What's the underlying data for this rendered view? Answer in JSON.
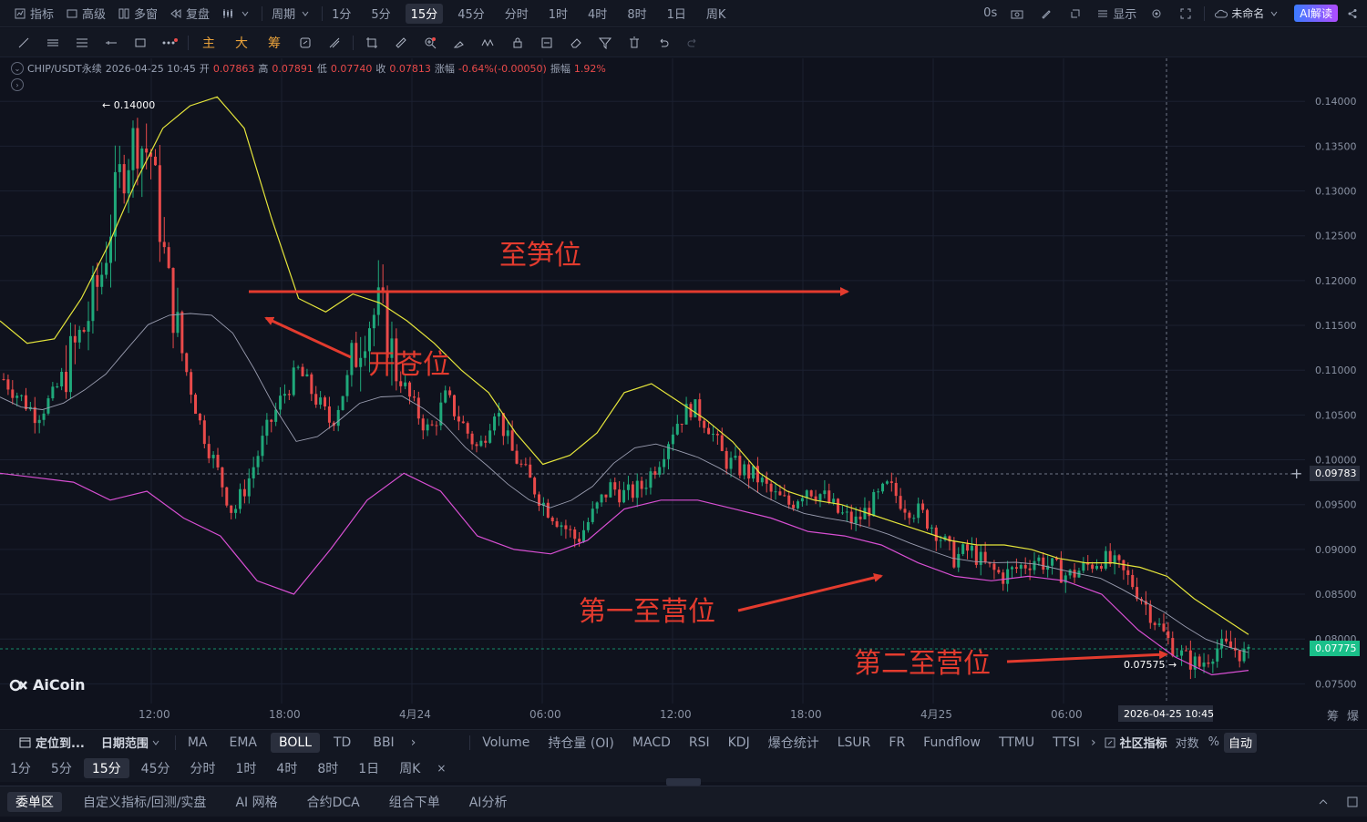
{
  "topbar": {
    "indicators": "指标",
    "advanced": "高级",
    "multi_window": "多窗",
    "replay": "复盘",
    "period_label": "周期",
    "timeframes": [
      "1分",
      "5分",
      "15分",
      "45分",
      "分时",
      "1时",
      "4时",
      "8时",
      "1日",
      "周K"
    ],
    "selected_timeframe": "15分",
    "countdown": "0s",
    "display": "显示",
    "layout_name": "未命名",
    "ai_button": "AI解读"
  },
  "toolbar": {
    "labels": [
      "主",
      "大",
      "筹"
    ]
  },
  "ohlc": {
    "symbol": "CHIP/USDT永续",
    "datetime": "2026-04-25 10:45",
    "open_label": "开",
    "open": "0.07863",
    "high_label": "高",
    "high": "0.07891",
    "low_label": "低",
    "low": "0.07740",
    "close_label": "收",
    "close": "0.07813",
    "change_label": "涨幅",
    "change": "-0.64%(-0.00050)",
    "amp_label": "振幅",
    "amp": "1.92%"
  },
  "chart_data": {
    "type": "candlestick",
    "indicator": "BOLL",
    "y_axis_ticks": [
      "0.14000",
      "0.13500",
      "0.13000",
      "0.12500",
      "0.12000",
      "0.11500",
      "0.11000",
      "0.10500",
      "0.10000",
      "0.09500",
      "0.09000",
      "0.08500",
      "0.08000",
      "0.07500"
    ],
    "ylim": [
      0.0728,
      0.1448
    ],
    "x_axis_ticks": [
      "12:00",
      "18:00",
      "4月24",
      "06:00",
      "12:00",
      "18:00",
      "4月25",
      "06:00"
    ],
    "crosshair_price": "0.09783",
    "last_price": "0.07775",
    "cursor_time": "2026-04-25 10:45",
    "max_marker": "0.14000",
    "min_marker": "0.07575",
    "close_path": [
      0.109,
      0.107,
      0.105,
      0.107,
      0.111,
      0.115,
      0.121,
      0.131,
      0.136,
      0.134,
      0.12,
      0.111,
      0.104,
      0.099,
      0.094,
      0.098,
      0.103,
      0.107,
      0.11,
      0.107,
      0.104,
      0.109,
      0.115,
      0.117,
      0.11,
      0.106,
      0.103,
      0.107,
      0.104,
      0.101,
      0.106,
      0.101,
      0.098,
      0.095,
      0.093,
      0.091,
      0.094,
      0.097,
      0.096,
      0.097,
      0.1,
      0.104,
      0.106,
      0.104,
      0.1,
      0.099,
      0.098,
      0.096,
      0.095,
      0.097,
      0.096,
      0.094,
      0.093,
      0.095,
      0.097,
      0.095,
      0.094,
      0.092,
      0.089,
      0.09,
      0.088,
      0.087,
      0.088,
      0.089,
      0.088,
      0.087,
      0.088,
      0.089,
      0.088,
      0.086,
      0.083,
      0.08,
      0.078,
      0.077,
      0.079,
      0.079,
      0.078
    ],
    "boll_upper": [
      0.1155,
      0.113,
      0.1135,
      0.118,
      0.124,
      0.131,
      0.137,
      0.1395,
      0.1405,
      0.137,
      0.127,
      0.118,
      0.1165,
      0.1185,
      0.1175,
      0.1155,
      0.113,
      0.11,
      0.1075,
      0.103,
      0.0995,
      0.1005,
      0.103,
      0.1075,
      0.1085,
      0.1065,
      0.1045,
      0.102,
      0.0985,
      0.0965,
      0.0955,
      0.095,
      0.094,
      0.093,
      0.092,
      0.091,
      0.0905,
      0.0905,
      0.09,
      0.089,
      0.0885,
      0.0885,
      0.088,
      0.087,
      0.0845,
      0.0825,
      0.0805
    ],
    "boll_lower": [
      0.0985,
      0.098,
      0.0975,
      0.0955,
      0.0965,
      0.0935,
      0.0915,
      0.0865,
      0.085,
      0.09,
      0.0955,
      0.0985,
      0.0965,
      0.0915,
      0.09,
      0.0895,
      0.091,
      0.0945,
      0.0955,
      0.0955,
      0.0945,
      0.0935,
      0.092,
      0.0915,
      0.0905,
      0.0885,
      0.087,
      0.0865,
      0.087,
      0.0865,
      0.085,
      0.081,
      0.078,
      0.076,
      0.0765
    ],
    "annotations": [
      {
        "text": "至笋位"
      },
      {
        "text": "开苍位"
      },
      {
        "text": "第一至营位"
      },
      {
        "text": "第二至营位"
      }
    ],
    "watermark": "AiCoin"
  },
  "bottom1": {
    "locate": "定位到...",
    "date_range": "日期范围",
    "main_indicators": [
      "MA",
      "EMA",
      "BOLL",
      "TD",
      "BBI"
    ],
    "selected_main": "BOLL",
    "sub_indicators": [
      "Volume",
      "持仓量 (OI)",
      "MACD",
      "RSI",
      "KDJ",
      "爆仓统计",
      "LSUR",
      "FR",
      "Fundflow",
      "TTMU",
      "TTSI"
    ],
    "community": "社区指标",
    "log": "对数",
    "percent": "%",
    "auto": "自动"
  },
  "bottom2": {
    "timeframes": [
      "1分",
      "5分",
      "15分",
      "45分",
      "分时",
      "1时",
      "4时",
      "8时",
      "1日",
      "周K"
    ],
    "selected": "15分"
  },
  "bottom3": {
    "tabs": [
      "委单区",
      "自定义指标/回测/实盘",
      "AI 网格",
      "合约DCA",
      "组合下单",
      "AI分析"
    ],
    "selected": "委单区"
  }
}
